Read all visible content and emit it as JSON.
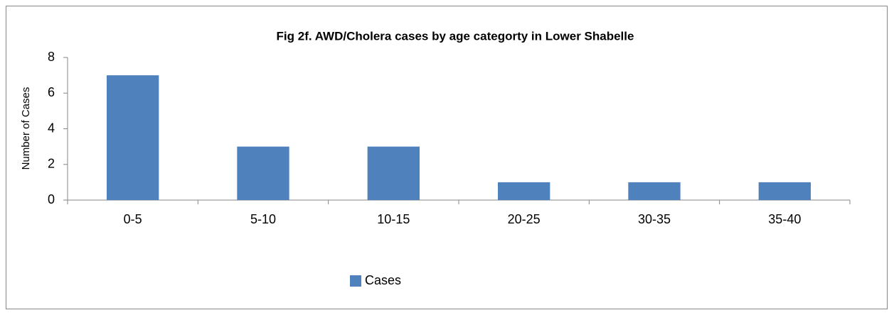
{
  "chart_data": {
    "type": "bar",
    "title": "Fig 2f. AWD/Cholera cases by age categorty in Lower Shabelle",
    "y_label": "Number of Cases",
    "categories": [
      "0-5",
      "5-10",
      "10-15",
      "20-25",
      "30-35",
      "35-40"
    ],
    "series": [
      {
        "name": "Cases",
        "color": "#4f81bd",
        "values": [
          7,
          3,
          3,
          1,
          1,
          1
        ]
      }
    ],
    "ylim": [
      0,
      8
    ],
    "yticks": [
      0,
      2,
      4,
      6,
      8
    ],
    "grid": false,
    "legend": "bottom"
  }
}
